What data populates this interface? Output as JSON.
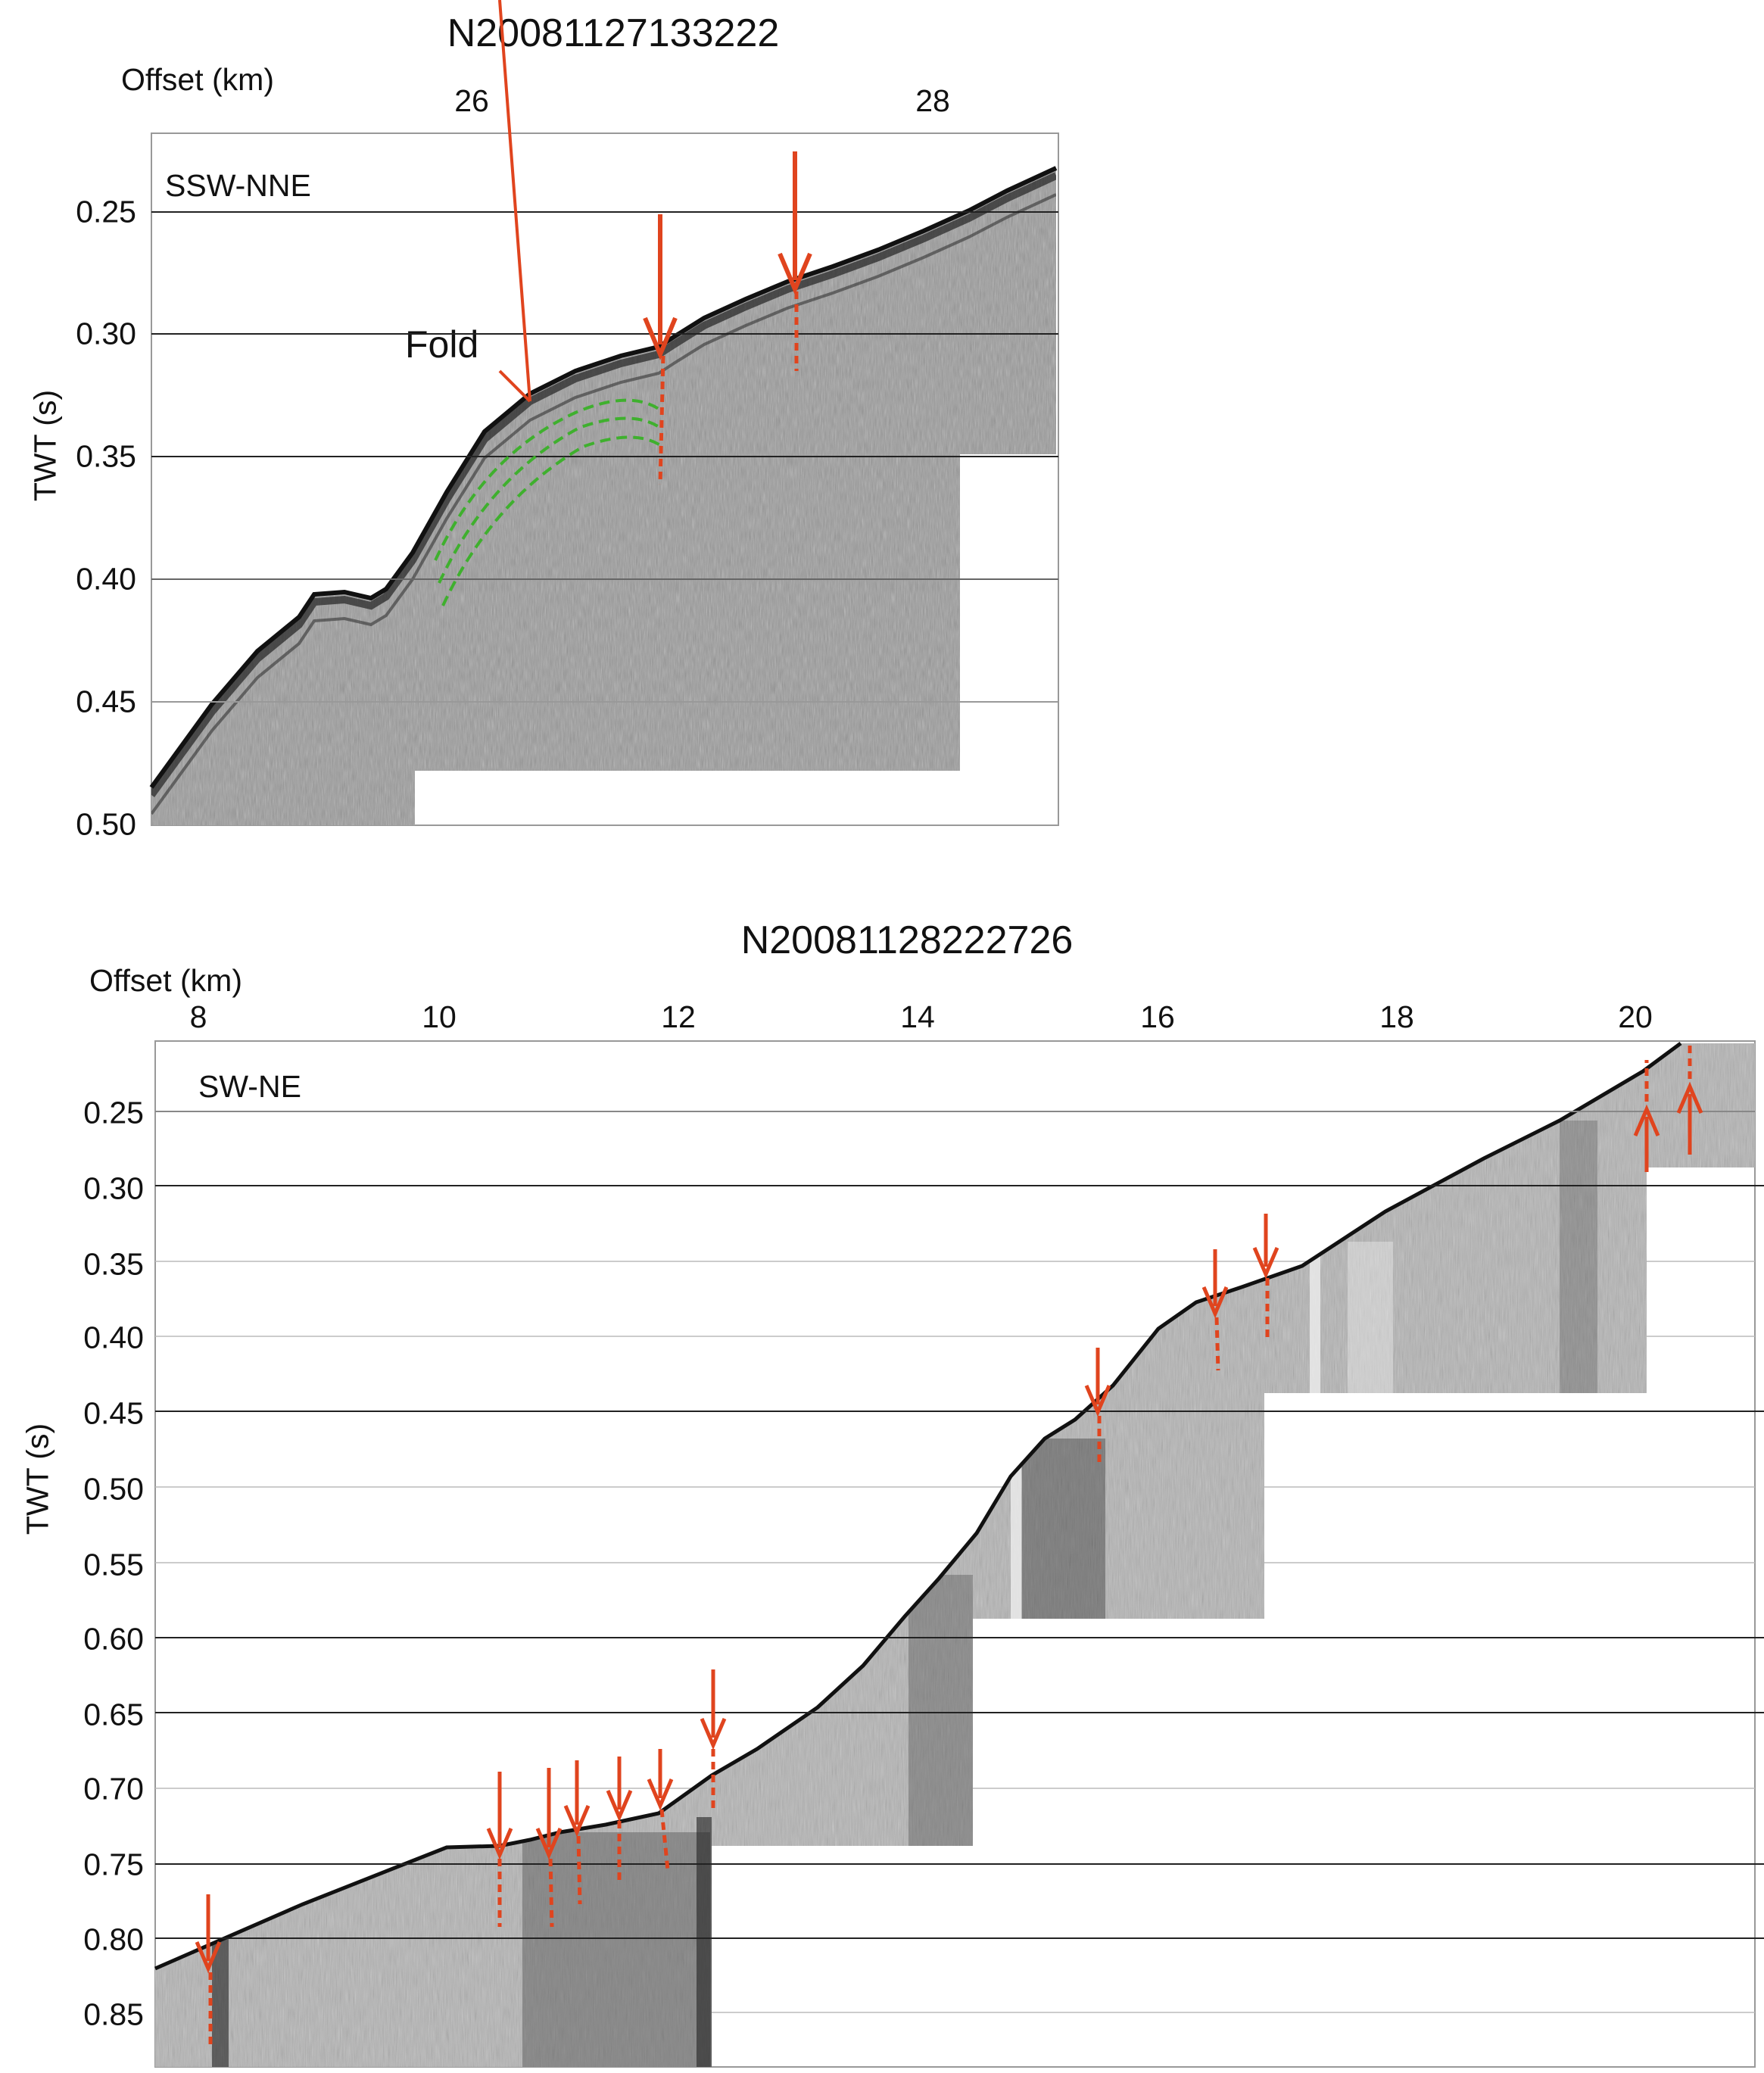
{
  "figures": [
    {
      "title": "N20081127133222",
      "xlabel": "Offset (km)",
      "ylabel": "TWT (s)",
      "direction": "SSW-NNE",
      "annotation": "Fold",
      "x_ticks": [
        "26",
        "28"
      ],
      "y_ticks": [
        "0.25",
        "0.30",
        "0.35",
        "0.40",
        "0.45",
        "0.50"
      ]
    },
    {
      "title": "N20081128222726",
      "xlabel": "Offset (km)",
      "ylabel": "TWT (s)",
      "direction": "SW-NE",
      "x_ticks": [
        "8",
        "10",
        "12",
        "14",
        "16",
        "18",
        "20"
      ],
      "y_ticks": [
        "0.25",
        "0.30",
        "0.35",
        "0.40",
        "0.45",
        "0.50",
        "0.55",
        "0.60",
        "0.65",
        "0.70",
        "0.75",
        "0.80",
        "0.85"
      ]
    }
  ],
  "colors": {
    "fault_arrow": "#e0441e",
    "fold_horizon": "#3fb02e",
    "section": "#7a7a7a"
  }
}
